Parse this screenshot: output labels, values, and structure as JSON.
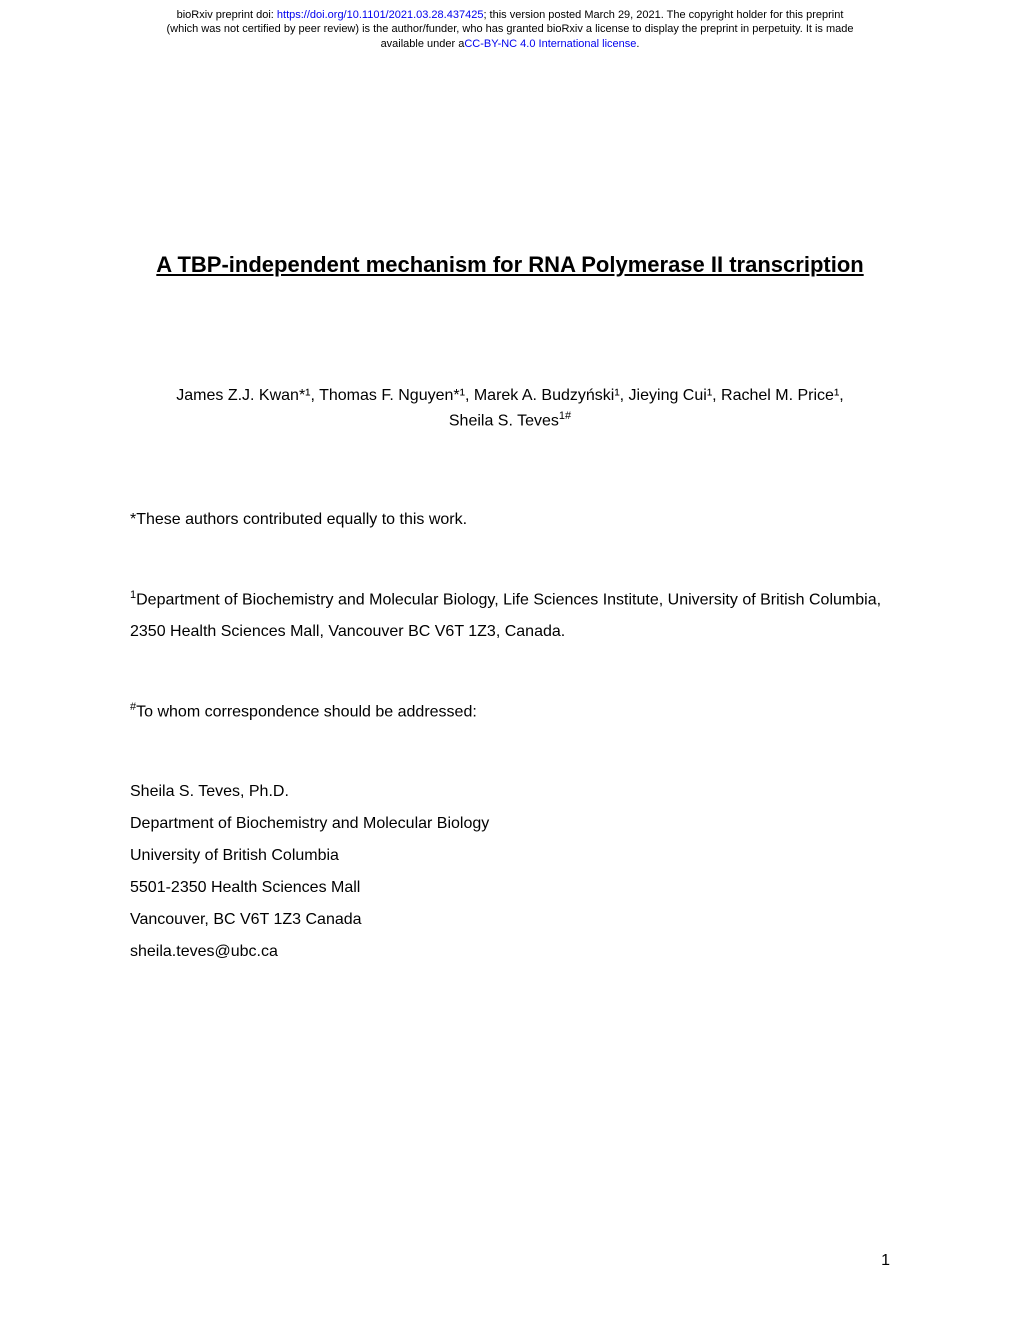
{
  "header": {
    "line1_prefix": "bioRxiv preprint doi: ",
    "doi_link": "https://doi.org/10.1101/2021.03.28.437425",
    "line1_suffix": "; this version posted March 29, 2021. The copyright holder for this preprint",
    "line2": "(which was not certified by peer review) is the author/funder, who has granted bioRxiv a license to display the preprint in perpetuity. It is made",
    "line3_prefix": "available under a",
    "license_link": "CC-BY-NC 4.0 International license",
    "line3_suffix": "."
  },
  "title": "A TBP-independent mechanism for RNA Polymerase II transcription",
  "authors": {
    "line1": "James Z.J. Kwan*¹, Thomas F. Nguyen*¹, Marek A. Budzyński¹, Jieying Cui¹, Rachel M. Price¹,",
    "line2_name": "Sheila S. Teves",
    "line2_sup": "1#"
  },
  "equal_contribution": "*These authors contributed equally to this work.",
  "affiliation": {
    "sup": "1",
    "text": "Department of Biochemistry and Molecular Biology, Life Sciences Institute, University of British Columbia, 2350 Health Sciences Mall, Vancouver BC V6T 1Z3, Canada."
  },
  "correspondence": {
    "sup": "#",
    "label": "To whom correspondence should be addressed:"
  },
  "contact": {
    "name": "Sheila S. Teves, Ph.D.",
    "dept": "Department of Biochemistry and Molecular Biology",
    "university": "University of British Columbia",
    "address": "5501-2350 Health Sciences Mall",
    "city": "Vancouver, BC V6T 1Z3 Canada",
    "email": "sheila.teves@ubc.ca"
  },
  "page_number": "1"
}
